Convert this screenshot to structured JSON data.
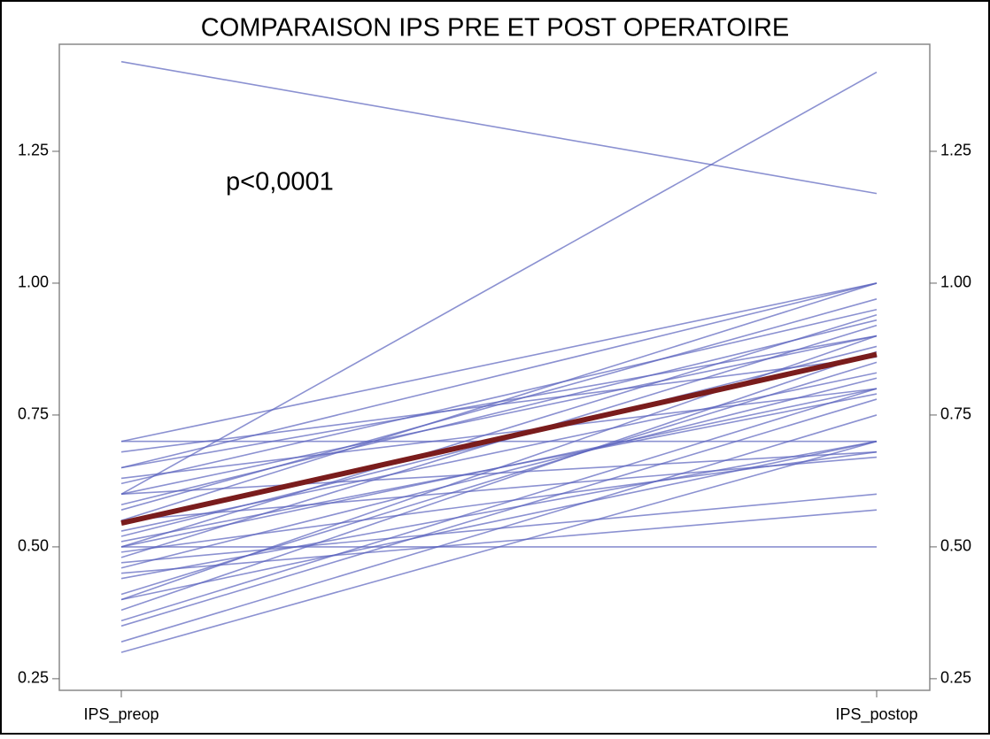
{
  "chart_data": {
    "type": "paired-line",
    "title": "COMPARAISON IPS PRE ET POST OPERATOIRE",
    "annotation": "p<0,0001",
    "categories": [
      "IPS_preop",
      "IPS_postop"
    ],
    "color": "#5a63bd",
    "ylim": [
      0.228,
      1.453
    ],
    "yticks": [
      0.25,
      {
        "value": 0.5,
        "label": "0.50"
      },
      0.75,
      {
        "value": 1,
        "label": "1.00"
      },
      1.25
    ],
    "series": [
      {
        "values": [
          1.42,
          1.17
        ]
      },
      {
        "values": [
          0.6,
          1.4
        ]
      },
      {
        "values": [
          0.7,
          1.0
        ]
      },
      {
        "values": [
          0.65,
          1.0
        ]
      },
      {
        "values": [
          0.7,
          0.7
        ]
      },
      {
        "values": [
          0.6,
          0.9
        ]
      },
      {
        "values": [
          0.5,
          0.8
        ]
      },
      {
        "values": [
          0.4,
          0.7
        ]
      },
      {
        "values": [
          0.3,
          0.7
        ]
      },
      {
        "values": [
          0.5,
          0.5
        ]
      },
      {
        "values": [
          0.47,
          0.6
        ]
      },
      {
        "values": [
          0.45,
          0.57
        ]
      },
      {
        "values": [
          0.55,
          0.67
        ]
      },
      {
        "values": [
          0.62,
          0.95
        ]
      },
      {
        "values": [
          0.58,
          0.93
        ]
      },
      {
        "values": [
          0.52,
          0.88
        ]
      },
      {
        "values": [
          0.48,
          0.92
        ]
      },
      {
        "values": [
          0.41,
          0.85
        ]
      },
      {
        "values": [
          0.36,
          0.8
        ]
      },
      {
        "values": [
          0.35,
          0.78
        ]
      },
      {
        "values": [
          0.32,
          0.75
        ]
      },
      {
        "values": [
          0.57,
          0.97
        ]
      },
      {
        "values": [
          0.6,
          0.68
        ]
      },
      {
        "values": [
          0.65,
          0.9
        ]
      },
      {
        "values": [
          0.53,
          0.83
        ]
      },
      {
        "values": [
          0.46,
          0.82
        ]
      },
      {
        "values": [
          0.4,
          0.9
        ]
      },
      {
        "values": [
          0.55,
          1.0
        ]
      },
      {
        "values": [
          0.5,
          0.94
        ]
      },
      {
        "values": [
          0.44,
          0.7
        ]
      },
      {
        "values": [
          0.38,
          0.87
        ]
      },
      {
        "values": [
          0.63,
          0.8
        ]
      },
      {
        "values": [
          0.68,
          0.86
        ]
      },
      {
        "values": [
          0.51,
          0.79
        ]
      },
      {
        "values": [
          0.49,
          0.68
        ]
      },
      {
        "values": [
          0.545,
          0.865
        ],
        "color": "#7a1c1c"
      }
    ]
  }
}
